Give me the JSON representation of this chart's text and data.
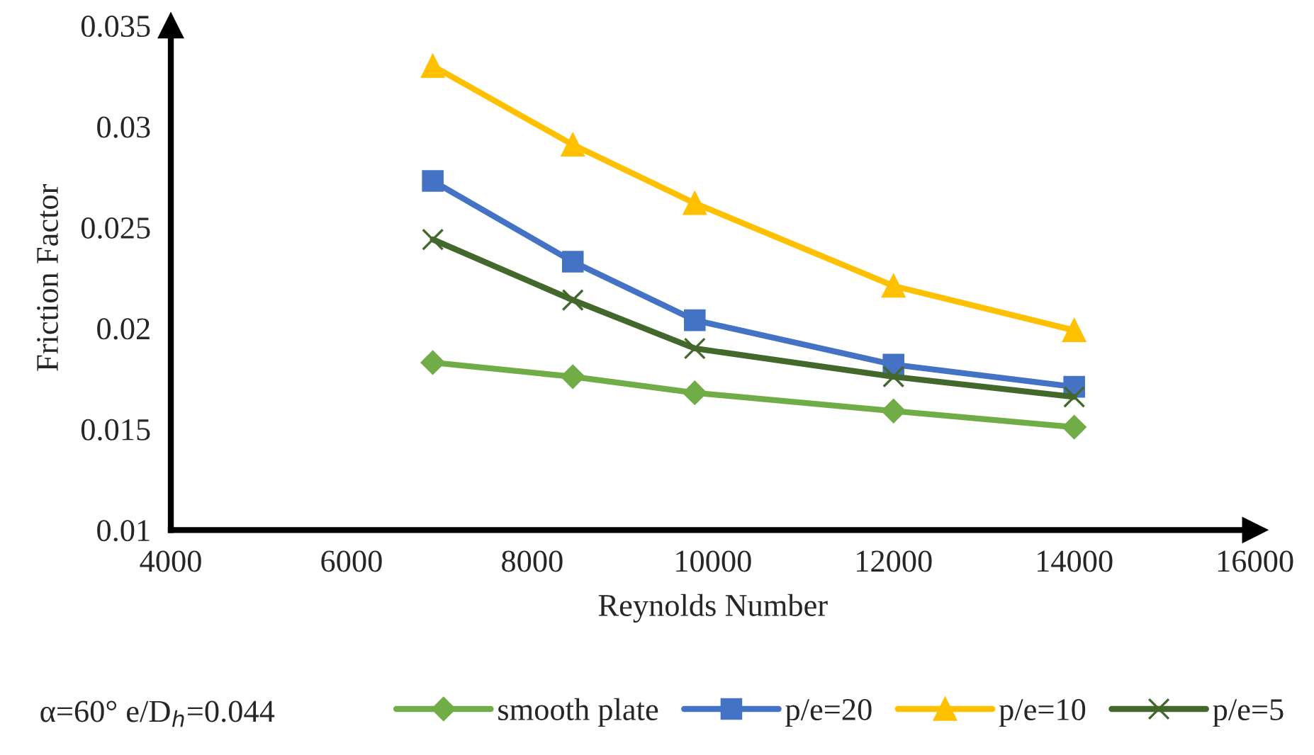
{
  "chart_data": {
    "type": "line",
    "xlabel": "Reynolds Number",
    "ylabel": "Friction Factor",
    "x": [
      6900,
      8450,
      9800,
      12000,
      14000
    ],
    "series": [
      {
        "name": "smooth plate",
        "color": "#70ad47",
        "marker": "diamond",
        "values": [
          0.0183,
          0.0176,
          0.0168,
          0.0159,
          0.0151
        ]
      },
      {
        "name": "p/e=20",
        "color": "#4472c4",
        "marker": "square",
        "values": [
          0.0273,
          0.0233,
          0.0204,
          0.0182,
          0.0171
        ]
      },
      {
        "name": "p/e=10",
        "color": "#ffc000",
        "marker": "triangle",
        "values": [
          0.033,
          0.0291,
          0.0262,
          0.0221,
          0.0199
        ]
      },
      {
        "name": "p/e=5",
        "color": "#43682b",
        "marker": "cross",
        "values": [
          0.0244,
          0.0214,
          0.019,
          0.0176,
          0.0166
        ]
      }
    ],
    "xlim": [
      4000,
      16000
    ],
    "xticks": [
      4000,
      6000,
      8000,
      10000,
      12000,
      14000,
      16000
    ],
    "ylim": [
      0.01,
      0.035
    ],
    "yticks": [
      0.01,
      0.015,
      0.02,
      0.025,
      0.03,
      0.035
    ],
    "grid": false,
    "legend": "bottom",
    "line_style": "solid",
    "annotations": [
      "α=60° e/D$_{h}$=0.044"
    ]
  }
}
